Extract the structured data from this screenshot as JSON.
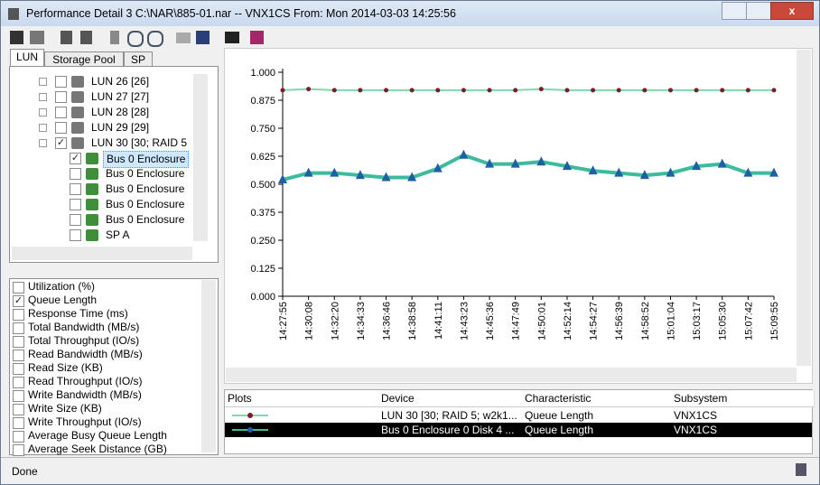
{
  "window": {
    "title": "Performance Detail 3 C:\\NAR\\885-01.nar -- VNX1CS From: Mon 2014-03-03 14:25:56"
  },
  "tabs": [
    "LUN",
    "Storage Pool",
    "SP"
  ],
  "tree": [
    {
      "label": "LUN 26 [26]",
      "checked": false
    },
    {
      "label": "LUN 27 [27]",
      "checked": false
    },
    {
      "label": "LUN 28 [28]",
      "checked": false
    },
    {
      "label": "LUN 29 [29]",
      "checked": false
    },
    {
      "label": "LUN 30 [30; RAID 5",
      "checked": true
    },
    {
      "label": "Bus 0 Enclosure",
      "checked": true
    },
    {
      "label": "Bus 0 Enclosure",
      "checked": false
    },
    {
      "label": "Bus 0 Enclosure",
      "checked": false
    },
    {
      "label": "Bus 0 Enclosure",
      "checked": false
    },
    {
      "label": "Bus 0 Enclosure",
      "checked": false
    },
    {
      "label": "SP A",
      "checked": false
    }
  ],
  "characteristics": [
    {
      "label": "Utilization (%)",
      "checked": false
    },
    {
      "label": "Queue Length",
      "checked": true
    },
    {
      "label": "Response Time (ms)",
      "checked": false
    },
    {
      "label": "Total Bandwidth (MB/s)",
      "checked": false
    },
    {
      "label": "Total Throughput (IO/s)",
      "checked": false
    },
    {
      "label": "Read Bandwidth (MB/s)",
      "checked": false
    },
    {
      "label": "Read Size (KB)",
      "checked": false
    },
    {
      "label": "Read Throughput (IO/s)",
      "checked": false
    },
    {
      "label": "Write Bandwidth (MB/s)",
      "checked": false
    },
    {
      "label": "Write Size (KB)",
      "checked": false
    },
    {
      "label": "Write Throughput (IO/s)",
      "checked": false
    },
    {
      "label": "Average Busy Queue Length",
      "checked": false
    },
    {
      "label": "Average Seek Distance (GB)",
      "checked": false
    }
  ],
  "chart_data": {
    "type": "line",
    "categories": [
      "14:27:55",
      "14:30:08",
      "14:32:20",
      "14:34:33",
      "14:36:46",
      "14:38:58",
      "14:41:11",
      "14:43:23",
      "14:45:36",
      "14:47:49",
      "14:50:01",
      "14:52:14",
      "14:54:27",
      "14:56:39",
      "14:58:52",
      "15:01:04",
      "15:03:17",
      "15:05:30",
      "15:07:42",
      "15:09:55"
    ],
    "series": [
      {
        "name": "LUN 30 [30; RAID 5; w2k1...",
        "color": "#7fd8b4",
        "marker_color": "#7a1f2a",
        "values": [
          0.92,
          0.925,
          0.92,
          0.92,
          0.92,
          0.92,
          0.92,
          0.92,
          0.92,
          0.92,
          0.925,
          0.92,
          0.92,
          0.92,
          0.92,
          0.92,
          0.92,
          0.92,
          0.92,
          0.92
        ]
      },
      {
        "name": "Bus 0 Enclosure 0 Disk 4 ...",
        "color": "#3dbb9c",
        "marker_color": "#1f5fa3",
        "values": [
          0.52,
          0.55,
          0.55,
          0.54,
          0.53,
          0.53,
          0.57,
          0.63,
          0.59,
          0.59,
          0.6,
          0.58,
          0.56,
          0.55,
          0.54,
          0.55,
          0.58,
          0.59,
          0.55,
          0.55
        ]
      }
    ],
    "ylim": [
      0,
      1
    ],
    "yticks": [
      {
        "value": 0,
        "label": "0.000"
      },
      {
        "value": 0.125,
        "label": "0.125"
      },
      {
        "value": 0.25,
        "label": "0.250"
      },
      {
        "value": 0.375,
        "label": "0.375"
      },
      {
        "value": 0.5,
        "label": "0.500"
      },
      {
        "value": 0.625,
        "label": "0.625"
      },
      {
        "value": 0.75,
        "label": "0.750"
      },
      {
        "value": 0.875,
        "label": "0.875"
      },
      {
        "value": 1,
        "label": "1.000"
      }
    ]
  },
  "table": {
    "headers": [
      "Plots",
      "Device",
      "Characteristic",
      "Subsystem"
    ],
    "rows": [
      [
        "LUN 30 [30; RAID 5; w2k1...",
        "Queue Length",
        "VNX1CS"
      ],
      [
        "Bus 0 Enclosure 0 Disk 4 ...",
        "Queue Length",
        "VNX1CS"
      ]
    ]
  },
  "status": "Done"
}
